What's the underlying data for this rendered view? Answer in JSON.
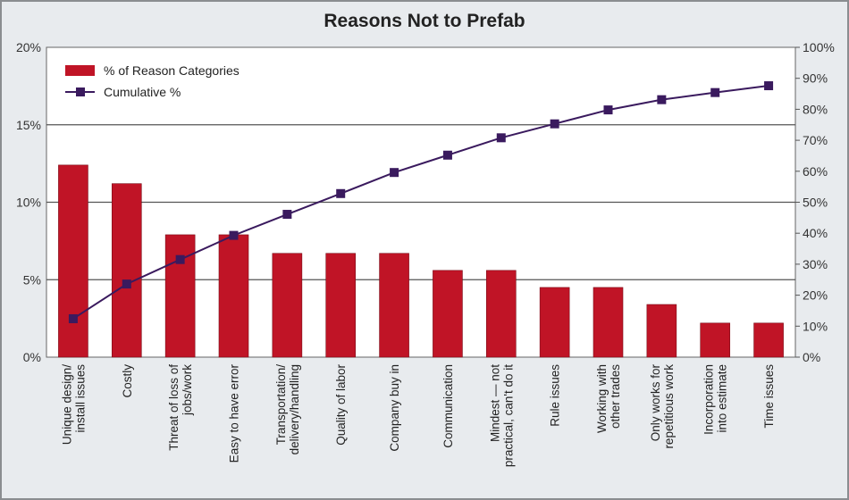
{
  "chart_data": {
    "type": "bar",
    "title": "Reasons Not to Prefab",
    "categories": [
      [
        "Unique design/",
        "install issues"
      ],
      [
        "Costly"
      ],
      [
        "Threat of loss of",
        "jobs/work"
      ],
      [
        "Easy to have error"
      ],
      [
        "Transportation/",
        "delivery/handling"
      ],
      [
        "Quality of labor"
      ],
      [
        "Company buy in"
      ],
      [
        "Communication"
      ],
      [
        "Mindest — not",
        "practical, can't do it"
      ],
      [
        "Rule issues"
      ],
      [
        "Working with",
        "other trades"
      ],
      [
        "Only works for",
        "repetitious work"
      ],
      [
        "Incorporation",
        "into estimate"
      ],
      [
        "Time issues"
      ]
    ],
    "series": [
      {
        "name": "% of Reason Categories",
        "type": "bar",
        "axis": "left",
        "color": "#c01426",
        "values": [
          12.4,
          11.2,
          7.9,
          7.9,
          6.7,
          6.7,
          6.7,
          5.6,
          5.6,
          4.5,
          4.5,
          3.4,
          2.2,
          2.2
        ]
      },
      {
        "name": "Cumulative %",
        "type": "line",
        "axis": "right",
        "color": "#3a1a5e",
        "values": [
          12.4,
          23.6,
          31.5,
          39.3,
          46.1,
          52.8,
          59.6,
          65.2,
          70.8,
          75.3,
          79.8,
          83.1,
          85.4,
          87.6
        ]
      }
    ],
    "ylim_left": [
      0,
      20
    ],
    "yticks_left": [
      "0%",
      "5%",
      "10%",
      "15%",
      "20%"
    ],
    "ylim_right": [
      0,
      100
    ],
    "yticks_right": [
      "0%",
      "10%",
      "20%",
      "30%",
      "40%",
      "50%",
      "60%",
      "70%",
      "80%",
      "90%",
      "100%"
    ],
    "grid": "horizontal at left-axis ticks",
    "legend": "top-left"
  }
}
